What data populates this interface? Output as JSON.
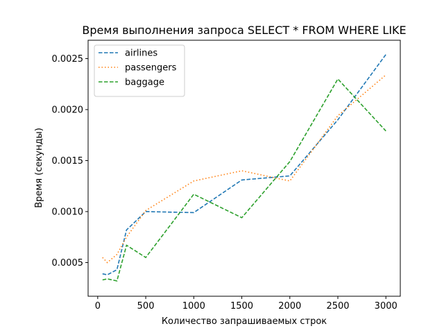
{
  "chart_data": {
    "type": "line",
    "title": "Время выполнения запроса SELECT * FROM WHERE LIKE",
    "xlabel": "Количество запрашиваемых строк",
    "ylabel": "Время (секунды)",
    "xlim": [
      -100,
      3150
    ],
    "ylim": [
      0.00017,
      0.00268
    ],
    "xticks": [
      0,
      500,
      1000,
      1500,
      2000,
      2500,
      3000
    ],
    "yticks": [
      0.0005,
      0.001,
      0.0015,
      0.002,
      0.0025
    ],
    "xtick_labels": [
      "0",
      "500",
      "1000",
      "1500",
      "2000",
      "2500",
      "3000"
    ],
    "ytick_labels": [
      "0.0005",
      "0.0010",
      "0.0015",
      "0.0020",
      "0.0025"
    ],
    "grid": false,
    "legend": "top-left",
    "series": [
      {
        "name": "airlines",
        "color": "#1f77b4",
        "style": "dashed",
        "x": [
          50,
          100,
          200,
          300,
          500,
          1000,
          1500,
          2000,
          2500,
          3000
        ],
        "y": [
          0.00039,
          0.00038,
          0.00043,
          0.00082,
          0.001,
          0.00099,
          0.00131,
          0.00135,
          0.0019,
          0.00254
        ]
      },
      {
        "name": "passengers",
        "color": "#ff7f0e",
        "style": "dotted",
        "x": [
          50,
          100,
          200,
          300,
          500,
          1000,
          1500,
          2000,
          2500,
          3000
        ],
        "y": [
          0.00055,
          0.0005,
          0.00058,
          0.00075,
          0.00101,
          0.0013,
          0.0014,
          0.0013,
          0.00194,
          0.00234
        ]
      },
      {
        "name": "baggage",
        "color": "#2ca02c",
        "style": "dashed",
        "x": [
          50,
          100,
          200,
          300,
          500,
          1000,
          1500,
          2000,
          2500,
          3000
        ],
        "y": [
          0.00033,
          0.00034,
          0.00032,
          0.00067,
          0.00055,
          0.00117,
          0.00094,
          0.00149,
          0.0023,
          0.00179
        ]
      }
    ]
  }
}
